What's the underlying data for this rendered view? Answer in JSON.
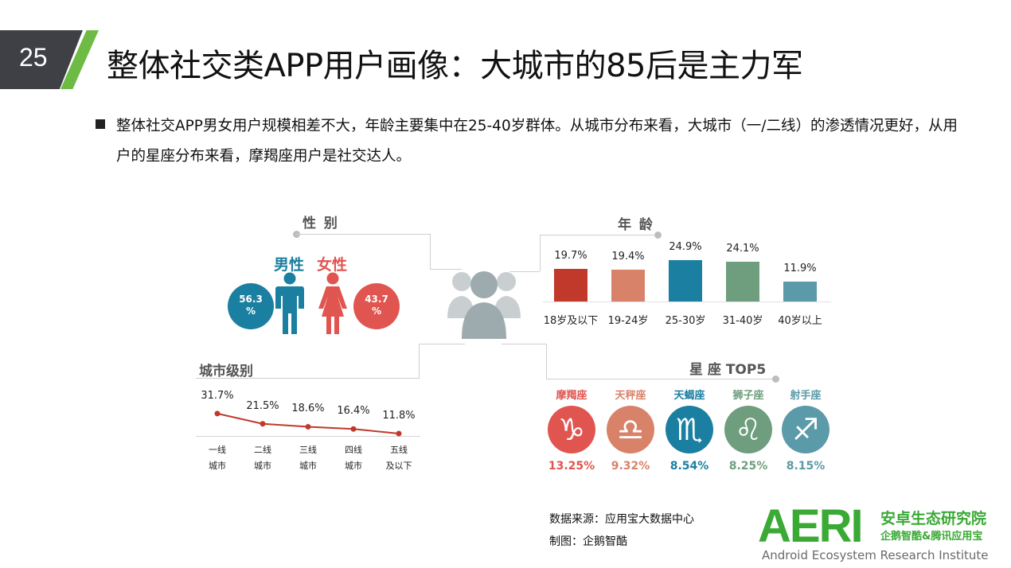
{
  "header": {
    "page_number": "25",
    "title": "整体社交类APP用户画像：大城市的85后是主力军"
  },
  "description": "整体社交APP男女用户规模相差不大，年龄主要集中在25-40岁群体。从城市分布来看，大城市（一/二线）的渗透情况更好，从用户的星座分布来看，摩羯座用户是社交达人。",
  "icons": {
    "center": "users-group-icon",
    "male": "male-figure-icon",
    "female": "female-figure-icon"
  },
  "colors": {
    "male": "#1a7fa0",
    "female": "#e05550",
    "accent_green": "#6dbb45",
    "city_line": "#c0392b"
  },
  "chart_data": [
    {
      "type": "pie",
      "title": "性  别",
      "categories": [
        "男性",
        "女性"
      ],
      "values": [
        56.3,
        43.7
      ],
      "labels": [
        "56.3\n%",
        "43.7\n%"
      ]
    },
    {
      "type": "bar",
      "title": "年  龄",
      "categories": [
        "18岁及以下",
        "19-24岁",
        "25-30岁",
        "31-40岁",
        "40岁以上"
      ],
      "values": [
        19.7,
        19.4,
        24.9,
        24.1,
        11.9
      ],
      "labels": [
        "19.7%",
        "19.4%",
        "24.9%",
        "24.1%",
        "11.9%"
      ],
      "colors": [
        "#c0392b",
        "#d9826a",
        "#1a7fa0",
        "#6e9e7e",
        "#5b9aa8"
      ],
      "ylim": [
        0,
        30
      ]
    },
    {
      "type": "line",
      "title": "城市级别",
      "categories": [
        [
          "一线",
          "城市"
        ],
        [
          "二线",
          "城市"
        ],
        [
          "三线",
          "城市"
        ],
        [
          "四线",
          "城市"
        ],
        [
          "五线",
          "及以下"
        ]
      ],
      "values": [
        31.7,
        21.5,
        18.6,
        16.4,
        11.8
      ],
      "labels": [
        "31.7%",
        "21.5%",
        "18.6%",
        "16.4%",
        "11.8%"
      ],
      "ylim": [
        0,
        60
      ]
    },
    {
      "type": "bar",
      "title": "星  座 TOP5",
      "categories": [
        "摩羯座",
        "天秤座",
        "天蝎座",
        "狮子座",
        "射手座"
      ],
      "symbols": [
        "♑",
        "♎",
        "♏",
        "♌",
        "♐"
      ],
      "values": [
        13.25,
        9.32,
        8.54,
        8.25,
        8.15
      ],
      "labels": [
        "13.25%",
        "9.32%",
        "8.54%",
        "8.25%",
        "8.15%"
      ],
      "colors": [
        "#e05550",
        "#d9826a",
        "#1a7fa0",
        "#6e9e7e",
        "#5b9aa8"
      ]
    }
  ],
  "footer": {
    "source": "数据来源：应用宝大数据中心",
    "maker": "制图：企鹅智酷"
  },
  "logo": {
    "mark": "AERI",
    "name_cn": "安卓生态研究院",
    "sub_cn": "企鹅智酷&腾讯应用宝",
    "name_en": "Android Ecosystem Research Institute"
  }
}
